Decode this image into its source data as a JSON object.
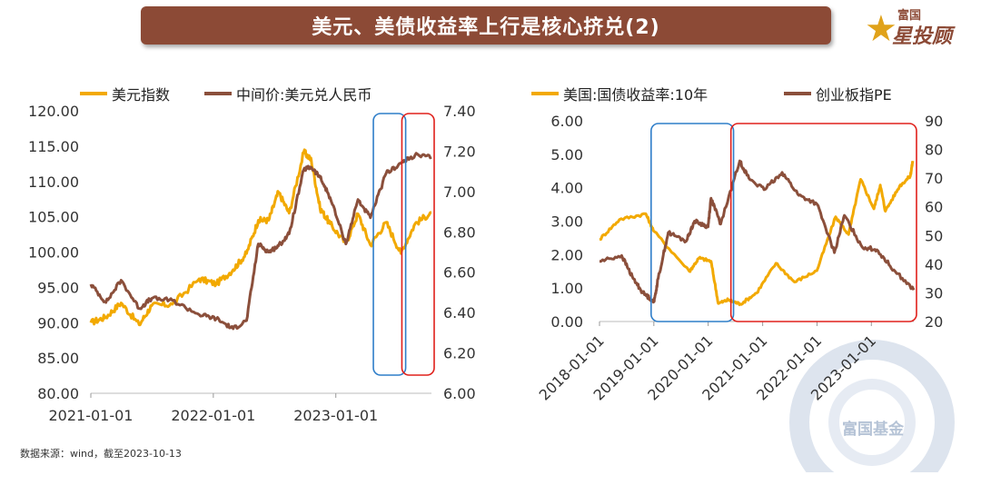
{
  "header": {
    "title": "美元、美债收益率上行是核心挤兑(2)"
  },
  "logo": {
    "top": "富国",
    "main": "星投顾"
  },
  "footer": {
    "source": "数据来源：wind，截至2023-10-13"
  },
  "watermark": {
    "text": "富国基金"
  },
  "colors": {
    "banner": "#8c4a36",
    "gold": "#f2a900",
    "brown": "#8b4f3b",
    "blue_box": "#2f7ec9",
    "red_box": "#e0201b"
  },
  "chart_data": [
    {
      "type": "line",
      "legend": [
        "美元指数",
        "中间价:美元兑人民币"
      ],
      "x_ticks": [
        "2021-01-01",
        "2022-01-01",
        "2023-01-01"
      ],
      "x_range": [
        "2021-01-01",
        "2023-10-13"
      ],
      "ylim_left": [
        80,
        120
      ],
      "yticks_left": [
        "80.00",
        "85.00",
        "90.00",
        "95.00",
        "100.00",
        "105.00",
        "110.00",
        "115.00",
        "120.00"
      ],
      "ylim_right": [
        6.0,
        7.4
      ],
      "yticks_right": [
        "6.00",
        "6.20",
        "6.40",
        "6.60",
        "6.80",
        "7.00",
        "7.20",
        "7.40"
      ],
      "series": [
        {
          "name": "美元指数",
          "axis": "left",
          "color": "#f2a900",
          "points": [
            [
              "2021-01-01",
              90.0
            ],
            [
              "2021-02-15",
              90.8
            ],
            [
              "2021-04-01",
              92.8
            ],
            [
              "2021-05-25",
              89.7
            ],
            [
              "2021-07-01",
              92.4
            ],
            [
              "2021-09-01",
              92.6
            ],
            [
              "2021-11-20",
              96.2
            ],
            [
              "2022-01-10",
              95.5
            ],
            [
              "2022-03-01",
              97.5
            ],
            [
              "2022-04-10",
              99.8
            ],
            [
              "2022-05-15",
              104.5
            ],
            [
              "2022-06-15",
              104.5
            ],
            [
              "2022-07-14",
              108.5
            ],
            [
              "2022-08-15",
              105.5
            ],
            [
              "2022-09-28",
              114.2
            ],
            [
              "2022-10-20",
              113.0
            ],
            [
              "2022-11-15",
              106.2
            ],
            [
              "2022-12-15",
              104.0
            ],
            [
              "2023-01-31",
              101.2
            ],
            [
              "2023-03-08",
              105.4
            ],
            [
              "2023-04-14",
              101.0
            ],
            [
              "2023-05-31",
              104.2
            ],
            [
              "2023-07-14",
              99.8
            ],
            [
              "2023-08-25",
              104.0
            ],
            [
              "2023-10-13",
              105.6
            ]
          ]
        },
        {
          "name": "中间价:美元兑人民币",
          "axis": "right",
          "color": "#8b4f3b",
          "points": [
            [
              "2021-01-01",
              6.54
            ],
            [
              "2021-02-15",
              6.45
            ],
            [
              "2021-04-01",
              6.56
            ],
            [
              "2021-05-25",
              6.42
            ],
            [
              "2021-07-01",
              6.47
            ],
            [
              "2021-09-01",
              6.46
            ],
            [
              "2021-11-20",
              6.39
            ],
            [
              "2022-01-10",
              6.37
            ],
            [
              "2022-03-01",
              6.32
            ],
            [
              "2022-04-10",
              6.36
            ],
            [
              "2022-05-15",
              6.74
            ],
            [
              "2022-06-15",
              6.7
            ],
            [
              "2022-07-14",
              6.73
            ],
            [
              "2022-08-15",
              6.79
            ],
            [
              "2022-09-28",
              7.11
            ],
            [
              "2022-10-20",
              7.12
            ],
            [
              "2022-11-15",
              7.07
            ],
            [
              "2022-12-15",
              6.97
            ],
            [
              "2023-01-31",
              6.74
            ],
            [
              "2023-03-08",
              6.96
            ],
            [
              "2023-04-14",
              6.87
            ],
            [
              "2023-05-31",
              7.09
            ],
            [
              "2023-07-14",
              7.14
            ],
            [
              "2023-08-25",
              7.18
            ],
            [
              "2023-10-13",
              7.17
            ]
          ]
        }
      ],
      "highlights": [
        {
          "color": "blue",
          "from": "2023-05-01",
          "to": "2023-07-20"
        },
        {
          "color": "red",
          "from": "2023-07-25",
          "to": "2023-10-13"
        }
      ]
    },
    {
      "type": "line",
      "legend": [
        "美国:国债收益率:10年",
        "创业板指PE"
      ],
      "x_ticks": [
        "2018-01-01",
        "2019-01-01",
        "2020-01-01",
        "2021-01-01",
        "2022-01-01",
        "2023-01-01"
      ],
      "x_range": [
        "2018-01-01",
        "2023-10-13"
      ],
      "ylim_left": [
        0,
        6
      ],
      "yticks_left": [
        "0.00",
        "1.00",
        "2.00",
        "3.00",
        "4.00",
        "5.00",
        "6.00"
      ],
      "ylim_right": [
        20,
        90
      ],
      "yticks_right": [
        "20",
        "30",
        "40",
        "50",
        "60",
        "70",
        "80",
        "90"
      ],
      "series": [
        {
          "name": "美国:国债收益率:10年",
          "axis": "left",
          "color": "#f2a900",
          "points": [
            [
              "2018-01-01",
              2.45
            ],
            [
              "2018-05-15",
              3.05
            ],
            [
              "2018-11-08",
              3.22
            ],
            [
              "2019-01-01",
              2.7
            ],
            [
              "2019-08-28",
              1.5
            ],
            [
              "2019-11-01",
              1.9
            ],
            [
              "2020-01-20",
              1.8
            ],
            [
              "2020-03-09",
              0.54
            ],
            [
              "2020-05-15",
              0.65
            ],
            [
              "2020-08-04",
              0.52
            ],
            [
              "2020-11-20",
              0.85
            ],
            [
              "2021-03-31",
              1.74
            ],
            [
              "2021-08-03",
              1.18
            ],
            [
              "2021-12-31",
              1.52
            ],
            [
              "2022-05-06",
              3.13
            ],
            [
              "2022-08-01",
              2.6
            ],
            [
              "2022-10-21",
              4.25
            ],
            [
              "2023-01-18",
              3.37
            ],
            [
              "2023-03-02",
              4.08
            ],
            [
              "2023-04-05",
              3.3
            ],
            [
              "2023-07-10",
              4.05
            ],
            [
              "2023-09-20",
              4.35
            ],
            [
              "2023-10-06",
              4.8
            ]
          ]
        },
        {
          "name": "创业板指PE",
          "axis": "right",
          "color": "#8b4f3b",
          "points": [
            [
              "2018-01-01",
              41
            ],
            [
              "2018-05-30",
              43
            ],
            [
              "2018-08-15",
              35
            ],
            [
              "2018-10-20",
              30
            ],
            [
              "2019-01-03",
              27
            ],
            [
              "2019-01-30",
              35
            ],
            [
              "2019-04-08",
              51
            ],
            [
              "2019-08-06",
              48
            ],
            [
              "2019-10-01",
              55
            ],
            [
              "2019-12-31",
              53
            ],
            [
              "2020-01-20",
              63
            ],
            [
              "2020-03-25",
              54
            ],
            [
              "2020-07-31",
              76
            ],
            [
              "2020-09-30",
              70
            ],
            [
              "2021-01-10",
              66
            ],
            [
              "2021-05-12",
              72
            ],
            [
              "2021-09-01",
              64
            ],
            [
              "2021-12-31",
              61
            ],
            [
              "2022-04-28",
              44
            ],
            [
              "2022-07-04",
              57
            ],
            [
              "2022-10-31",
              46
            ],
            [
              "2023-02-07",
              45
            ],
            [
              "2023-06-01",
              38
            ],
            [
              "2023-10-13",
              31
            ]
          ]
        }
      ],
      "highlights": [
        {
          "color": "blue",
          "from": "2019-01-01",
          "to": "2020-06-01"
        },
        {
          "color": "red",
          "from": "2020-06-20",
          "to": "2023-10-13"
        }
      ]
    }
  ]
}
